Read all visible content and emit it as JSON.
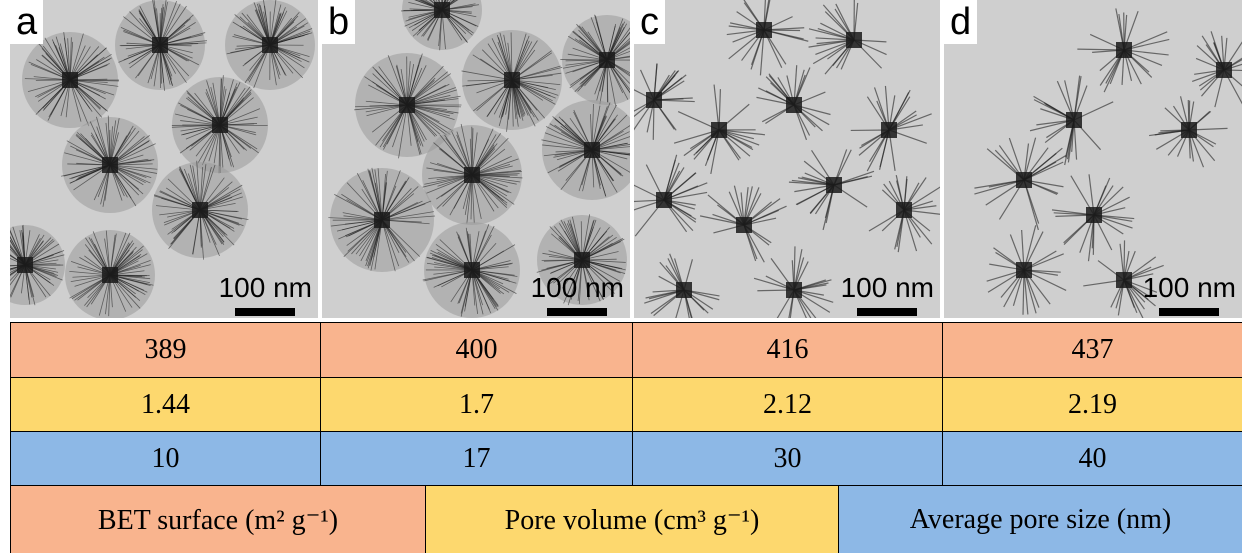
{
  "panels": [
    {
      "label": "a",
      "scale_bar": "100 nm"
    },
    {
      "label": "b",
      "scale_bar": "100 nm"
    },
    {
      "label": "c",
      "scale_bar": "100 nm"
    },
    {
      "label": "d",
      "scale_bar": "100 nm"
    }
  ],
  "table": {
    "rows": [
      [
        389,
        400,
        416,
        437
      ],
      [
        1.44,
        1.7,
        2.12,
        2.19
      ],
      [
        10,
        17,
        30,
        40
      ]
    ]
  },
  "legend": [
    "BET surface (m² g⁻¹)",
    "Pore volume (cm³ g⁻¹)",
    "Average pore size (nm)"
  ]
}
